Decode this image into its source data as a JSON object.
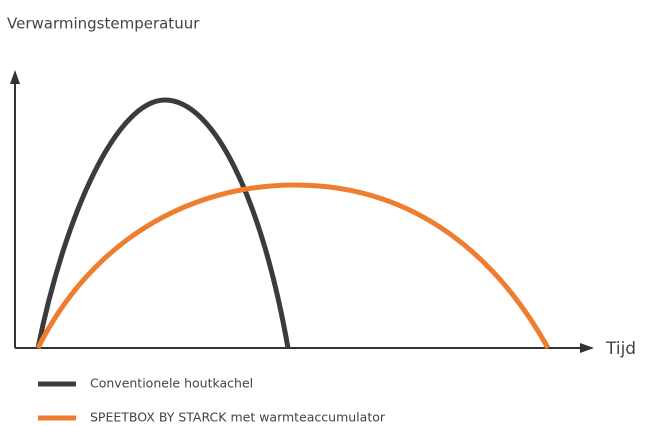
{
  "title": "Verwarmingstemperatuur",
  "x_axis_label": "Tijd",
  "legend": [
    {
      "label": "Conventionele houtkachel",
      "color": "#3b3b3b"
    },
    {
      "label": "SPEETBOX BY STARCK met warmteaccumulator",
      "color": "#ee7d2f"
    }
  ]
}
